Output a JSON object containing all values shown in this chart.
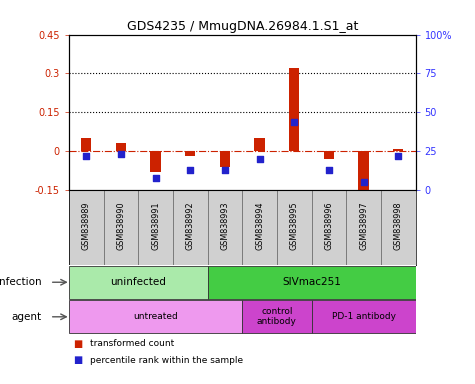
{
  "title": "GDS4235 / MmugDNA.26984.1.S1_at",
  "samples": [
    "GSM838989",
    "GSM838990",
    "GSM838991",
    "GSM838992",
    "GSM838993",
    "GSM838994",
    "GSM838995",
    "GSM838996",
    "GSM838997",
    "GSM838998"
  ],
  "transformed_count": [
    0.05,
    0.03,
    -0.08,
    -0.02,
    -0.06,
    0.05,
    0.32,
    -0.03,
    -0.2,
    0.01
  ],
  "percentile_rank_pct": [
    22,
    23,
    8,
    13,
    13,
    20,
    44,
    13,
    5,
    22
  ],
  "ylim_left": [
    -0.15,
    0.45
  ],
  "ylim_right": [
    0,
    100
  ],
  "right_ticks": [
    0,
    25,
    50,
    75,
    100
  ],
  "right_tick_labels": [
    "0",
    "25",
    "50",
    "75",
    "100%"
  ],
  "left_ticks": [
    -0.15,
    0.0,
    0.15,
    0.3,
    0.45
  ],
  "left_tick_labels": [
    "-0.15",
    "0",
    "0.15",
    "0.3",
    "0.45"
  ],
  "hlines": [
    0.15,
    0.3
  ],
  "bar_color": "#cc2200",
  "dot_color": "#2222cc",
  "infection_labels": [
    {
      "label": "uninfected",
      "start": 0,
      "end": 4,
      "color": "#aaeaaa"
    },
    {
      "label": "SIVmac251",
      "start": 4,
      "end": 10,
      "color": "#44cc44"
    }
  ],
  "agent_labels": [
    {
      "label": "untreated",
      "start": 0,
      "end": 5,
      "color": "#ee99ee"
    },
    {
      "label": "control\nantibody",
      "start": 5,
      "end": 7,
      "color": "#cc44cc"
    },
    {
      "label": "PD-1 antibody",
      "start": 7,
      "end": 10,
      "color": "#cc44cc"
    }
  ],
  "legend_items": [
    {
      "color": "#cc2200",
      "label": "transformed count"
    },
    {
      "color": "#2222cc",
      "label": "percentile rank within the sample"
    }
  ],
  "infection_row_label": "infection",
  "agent_row_label": "agent",
  "background_color": "#ffffff",
  "plot_bg_color": "#ffffff",
  "grid_color": "#000000",
  "zero_line_color": "#cc2200",
  "tick_label_color_left": "#cc2200",
  "tick_label_color_right": "#3333ff"
}
